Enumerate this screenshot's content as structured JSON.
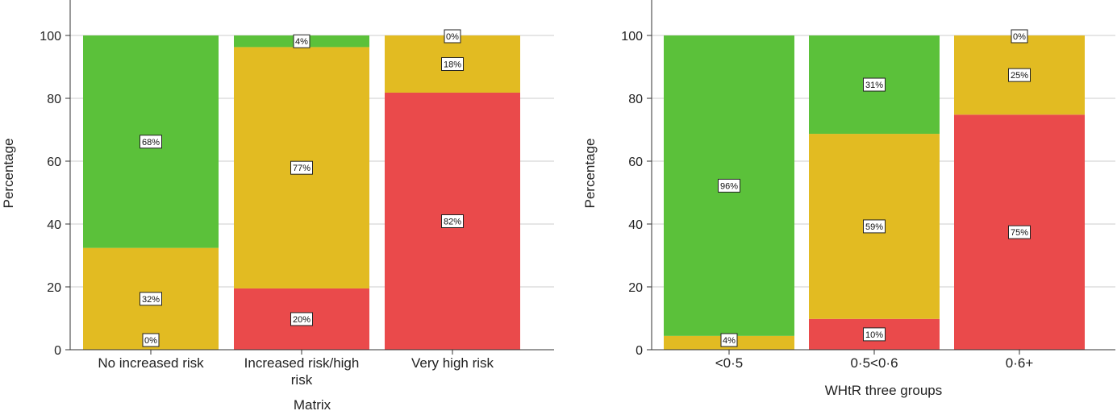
{
  "colors": {
    "low": "#5bc13a",
    "mid": "#e2bb22",
    "high": "#ea4a4b",
    "grid": "#cccccc"
  },
  "chart_data": [
    {
      "type": "bar",
      "stacked": true,
      "xlabel": "Matrix",
      "ylabel": "Percentage",
      "ylim": [
        0,
        110
      ],
      "yticks": [
        0,
        20,
        40,
        60,
        80,
        100
      ],
      "categories": [
        [
          "No increased risk"
        ],
        [
          "Increased risk/high",
          "risk"
        ],
        [
          "Very high risk"
        ]
      ],
      "series": [
        {
          "color_key": "high",
          "values": [
            0,
            19.5,
            81.8
          ],
          "labels": [
            "0%",
            "20%",
            "82%"
          ]
        },
        {
          "color_key": "mid",
          "values": [
            32.4,
            76.8,
            18.2
          ],
          "labels": [
            "32%",
            "77%",
            "18%"
          ]
        },
        {
          "color_key": "low",
          "values": [
            67.6,
            3.7,
            0
          ],
          "labels": [
            "68%",
            "4%",
            "0%"
          ]
        }
      ]
    },
    {
      "type": "bar",
      "stacked": true,
      "xlabel": "WHtR three groups",
      "ylabel": "Percentage",
      "ylim": [
        0,
        110
      ],
      "yticks": [
        0,
        20,
        40,
        60,
        80,
        100
      ],
      "categories": [
        [
          "<0·5"
        ],
        [
          "0·5<0·6"
        ],
        [
          "0·6+"
        ]
      ],
      "series": [
        {
          "color_key": "high",
          "values": [
            0,
            9.8,
            74.8
          ],
          "labels": [
            "",
            "10%",
            "75%"
          ]
        },
        {
          "color_key": "mid",
          "values": [
            4.4,
            58.9,
            25.2
          ],
          "labels": [
            "4%",
            "59%",
            "25%"
          ]
        },
        {
          "color_key": "low",
          "values": [
            95.6,
            31.3,
            0
          ],
          "labels": [
            "96%",
            "31%",
            "0%"
          ]
        }
      ]
    }
  ]
}
